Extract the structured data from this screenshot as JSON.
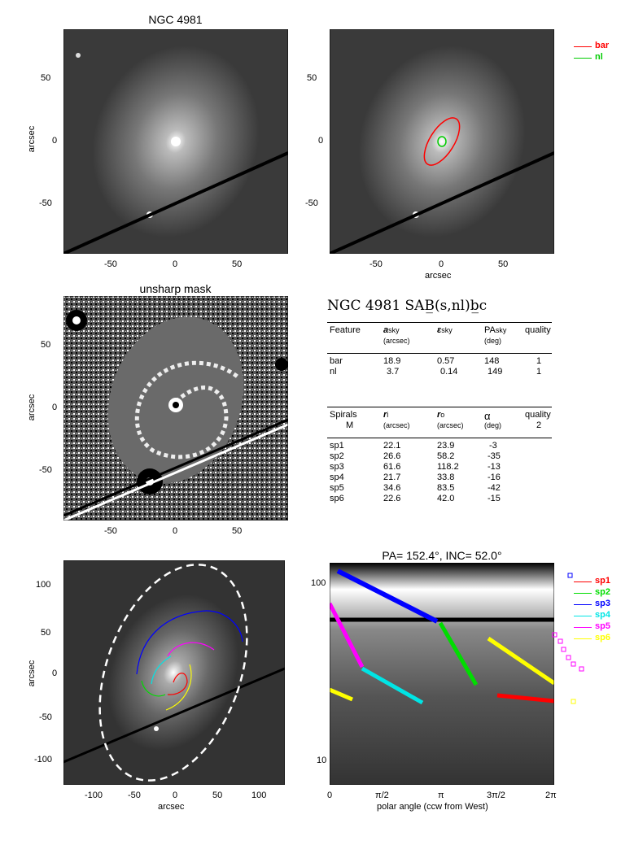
{
  "panel1": {
    "title": "NGC 4981",
    "ylabel": "arcsec",
    "yticks": [
      "50",
      "0",
      "-50"
    ],
    "xticks": [
      "-50",
      "0",
      "50"
    ]
  },
  "panel2": {
    "xlabel": "arcsec",
    "yticks": [
      "50",
      "0",
      "-50"
    ],
    "xticks": [
      "-50",
      "0",
      "50"
    ],
    "legend": [
      {
        "name": "bar",
        "color": "#ff0000"
      },
      {
        "name": "nl",
        "color": "#00cc00"
      }
    ]
  },
  "panel3": {
    "title": "unsharp mask",
    "ylabel": "arcsec",
    "yticks": [
      "50",
      "0",
      "-50"
    ],
    "xticks": [
      "-50",
      "0",
      "50"
    ]
  },
  "table": {
    "title": "NGC 4981  SAB̲(s,nl)b̲c",
    "features_header": {
      "c1": "Feature",
      "c2": "a",
      "c2sub": "sky",
      "c2u": "(arcsec)",
      "c3": "ε",
      "c3sub": "sky",
      "c4": "PA",
      "c4sub": "sky",
      "c4u": "(deg)",
      "c5": "quality"
    },
    "features": [
      {
        "name": "bar",
        "a": "18.9",
        "e": "0.57",
        "pa": "148",
        "q": "1"
      },
      {
        "name": "nl",
        "a": "3.7",
        "e": "0.14",
        "pa": "149",
        "q": "1"
      }
    ],
    "spirals_header": {
      "c1": "Spirals",
      "c1b": "M",
      "c2": "r",
      "c2sub": "i",
      "c2u": "(arcsec)",
      "c3": "r",
      "c3sub": "o",
      "c3u": "(arcsec)",
      "c4": "α",
      "c4u": "(deg)",
      "c5": "quality",
      "c5b": "2"
    },
    "spirals": [
      {
        "name": "sp1",
        "ri": "22.1",
        "ro": "23.9",
        "alpha": "-3"
      },
      {
        "name": "sp2",
        "ri": "26.6",
        "ro": "58.2",
        "alpha": "-35"
      },
      {
        "name": "sp3",
        "ri": "61.6",
        "ro": "118.2",
        "alpha": "-13"
      },
      {
        "name": "sp4",
        "ri": "21.7",
        "ro": "33.8",
        "alpha": "-16"
      },
      {
        "name": "sp5",
        "ri": "34.6",
        "ro": "83.5",
        "alpha": "-42"
      },
      {
        "name": "sp6",
        "ri": "22.6",
        "ro": "42.0",
        "alpha": "-15"
      }
    ]
  },
  "panel5": {
    "xlabel": "arcsec",
    "ylabel": "arcsec",
    "yticks": [
      "100",
      "50",
      "0",
      "-50",
      "-100"
    ],
    "xticks": [
      "-100",
      "-50",
      "0",
      "50",
      "100"
    ]
  },
  "panel6": {
    "title": "PA= 152.4°, INC=  52.0°",
    "xlabel": "polar angle (ccw from West)",
    "yticks": [
      "100",
      "10"
    ],
    "xticks": [
      "0",
      "π/2",
      "π",
      "3π/2",
      "2π"
    ],
    "legend": [
      {
        "name": "sp1",
        "color": "#ff0000"
      },
      {
        "name": "sp2",
        "color": "#00dd00"
      },
      {
        "name": "sp3",
        "color": "#0000ff"
      },
      {
        "name": "sp4",
        "color": "#00e5e5"
      },
      {
        "name": "sp5",
        "color": "#ff00ff"
      },
      {
        "name": "sp6",
        "color": "#ffff00"
      }
    ]
  }
}
